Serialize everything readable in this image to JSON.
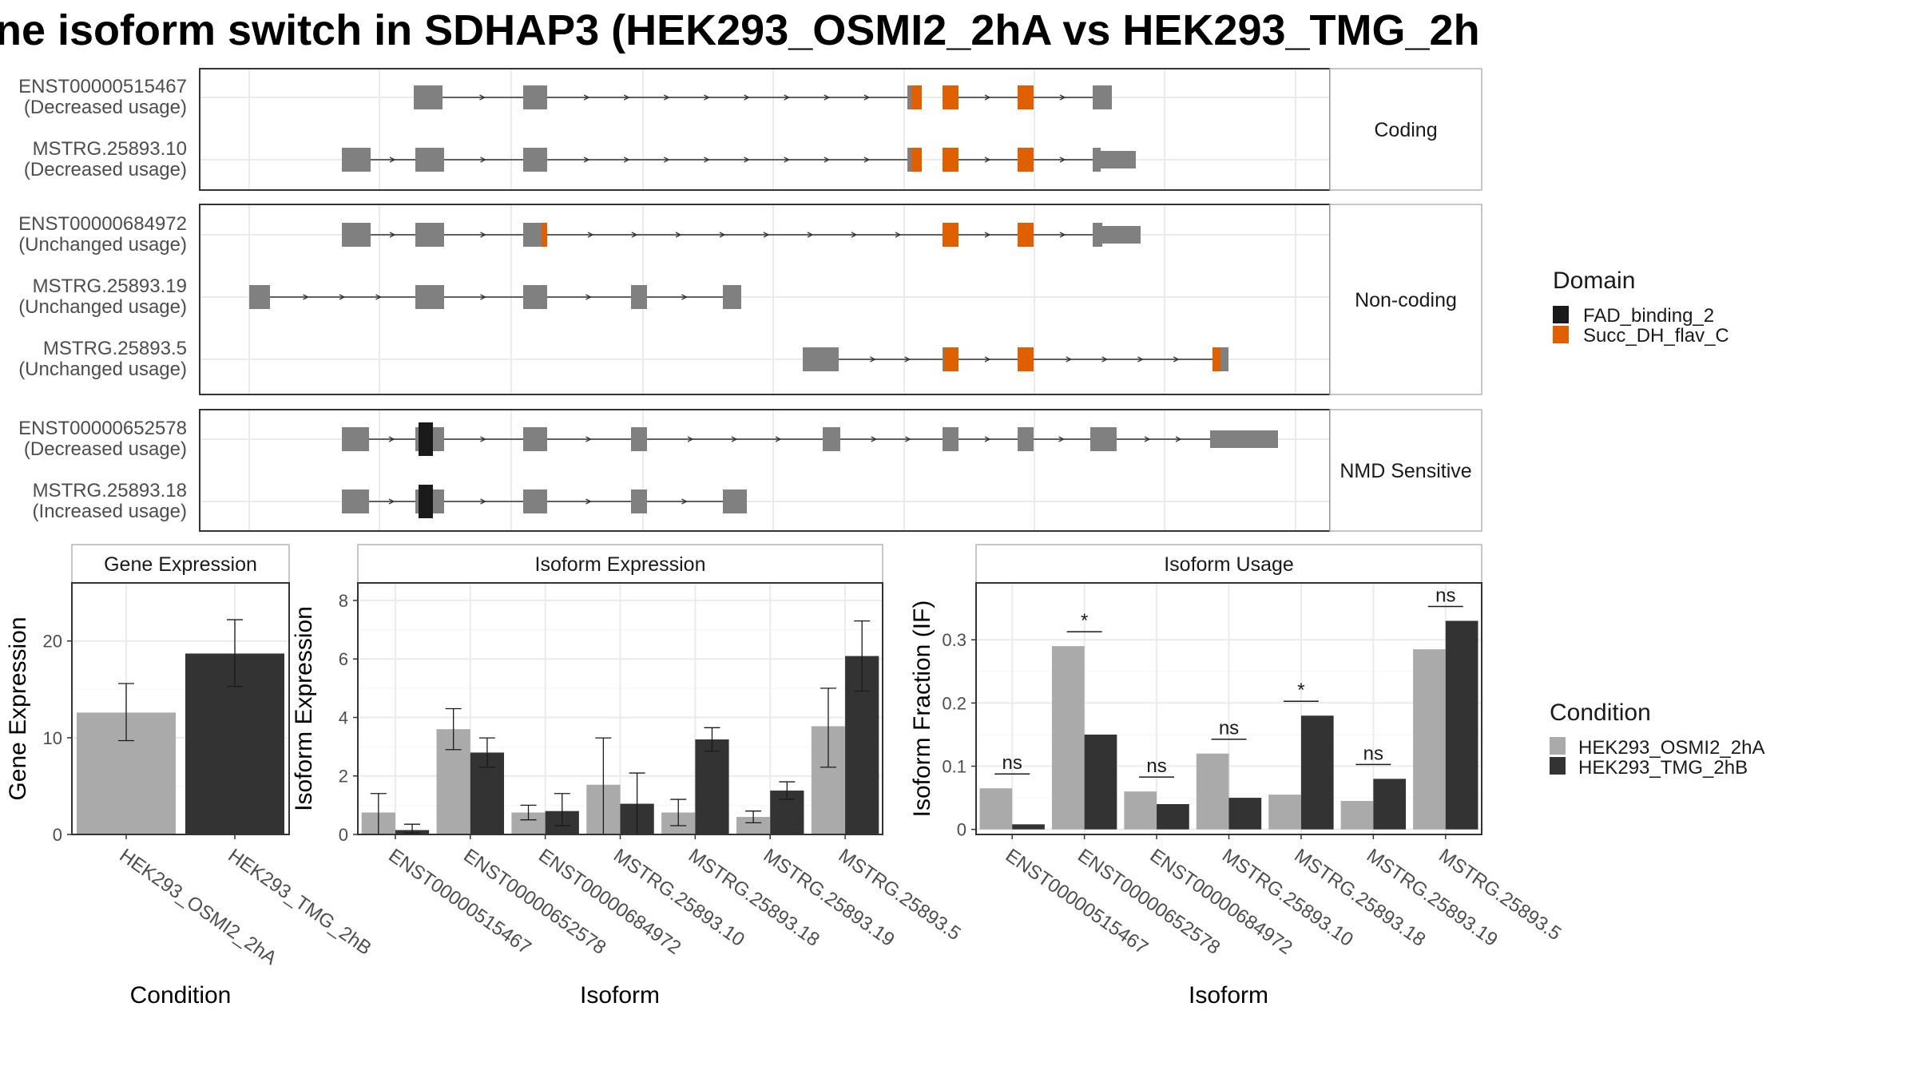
{
  "title": "ne isoform switch in SDHAP3 (HEK293_OSMI2_2hA vs HEK293_TMG_2h",
  "colors": {
    "exon": "#808080",
    "FAD_binding_2": "#1a1a1a",
    "Succ_DH_flav_C": "#e06000",
    "cond_a": "#aaaaaa",
    "cond_b": "#333333"
  },
  "legends": {
    "domain": {
      "title": "Domain",
      "items": [
        {
          "label": "FAD_binding_2",
          "color": "#1a1a1a"
        },
        {
          "label": "Succ_DH_flav_C",
          "color": "#e06000"
        }
      ]
    },
    "condition": {
      "title": "Condition",
      "items": [
        {
          "label": "HEK293_OSMI2_2hA",
          "color": "#aaaaaa"
        },
        {
          "label": "HEK293_TMG_2hB",
          "color": "#333333"
        }
      ]
    }
  },
  "structure": {
    "groups": [
      {
        "label": "Coding",
        "transcripts": [
          {
            "name": "ENST00000515467",
            "usage": "(Decreased usage)"
          },
          {
            "name": "MSTRG.25893.10",
            "usage": "(Decreased usage)"
          }
        ]
      },
      {
        "label": "Non-coding",
        "transcripts": [
          {
            "name": "ENST00000684972",
            "usage": "(Unchanged usage)"
          },
          {
            "name": "MSTRG.25893.19",
            "usage": "(Unchanged usage)"
          },
          {
            "name": "MSTRG.25893.5",
            "usage": "(Unchanged usage)"
          }
        ]
      },
      {
        "label": "NMD Sensitive",
        "transcripts": [
          {
            "name": "ENST00000652578",
            "usage": "(Decreased usage)"
          },
          {
            "name": "MSTRG.25893.18",
            "usage": "(Increased usage)"
          }
        ]
      }
    ]
  },
  "chart_data": [
    {
      "type": "bar",
      "panel": "Gene Expression",
      "xlabel": "Condition",
      "ylabel": "Gene Expression",
      "ylim": [
        0,
        26
      ],
      "yticks": [
        0,
        10,
        20
      ],
      "categories": [
        "HEK293_OSMI2_2hA",
        "HEK293_TMG_2hB"
      ],
      "values": [
        12.6,
        18.7
      ],
      "err_low": [
        9.7,
        15.3
      ],
      "err_high": [
        15.6,
        22.2
      ]
    },
    {
      "type": "bar",
      "panel": "Isoform Expression",
      "xlabel": "Isoform",
      "ylabel": "Isoform Expression",
      "ylim": [
        0,
        8.6
      ],
      "yticks": [
        0,
        2,
        4,
        6,
        8
      ],
      "categories": [
        "ENST00000515467",
        "ENST00000652578",
        "ENST00000684972",
        "MSTRG.25893.10",
        "MSTRG.25893.18",
        "MSTRG.25893.19",
        "MSTRG.25893.5"
      ],
      "series": [
        {
          "name": "HEK293_OSMI2_2hA",
          "values": [
            0.75,
            3.6,
            0.75,
            1.7,
            0.75,
            0.6,
            3.7
          ],
          "err_low": [
            0.0,
            2.9,
            0.5,
            0.0,
            0.3,
            0.4,
            2.3
          ],
          "err_high": [
            1.4,
            4.3,
            1.0,
            3.3,
            1.2,
            0.8,
            5.0
          ]
        },
        {
          "name": "HEK293_TMG_2hB",
          "values": [
            0.15,
            2.8,
            0.8,
            1.05,
            3.25,
            1.5,
            6.1
          ],
          "err_low": [
            0.05,
            2.3,
            0.3,
            0.0,
            2.85,
            1.2,
            4.9
          ],
          "err_high": [
            0.35,
            3.3,
            1.4,
            2.1,
            3.65,
            1.8,
            7.3
          ]
        }
      ]
    },
    {
      "type": "bar",
      "panel": "Isoform Usage",
      "xlabel": "Isoform",
      "ylabel": "Isoform Fraction (IF)",
      "ylim": [
        -0.008,
        0.39
      ],
      "yticks": [
        0.0,
        0.1,
        0.2,
        0.3
      ],
      "categories": [
        "ENST00000515467",
        "ENST00000652578",
        "ENST00000684972",
        "MSTRG.25893.10",
        "MSTRG.25893.18",
        "MSTRG.25893.19",
        "MSTRG.25893.5"
      ],
      "series": [
        {
          "name": "HEK293_OSMI2_2hA",
          "values": [
            0.065,
            0.29,
            0.06,
            0.12,
            0.055,
            0.045,
            0.285
          ]
        },
        {
          "name": "HEK293_TMG_2hB",
          "values": [
            0.008,
            0.15,
            0.04,
            0.05,
            0.18,
            0.08,
            0.33
          ]
        }
      ],
      "annotations": [
        "ns",
        "*",
        "ns",
        "ns",
        "*",
        "ns",
        "ns"
      ]
    }
  ]
}
